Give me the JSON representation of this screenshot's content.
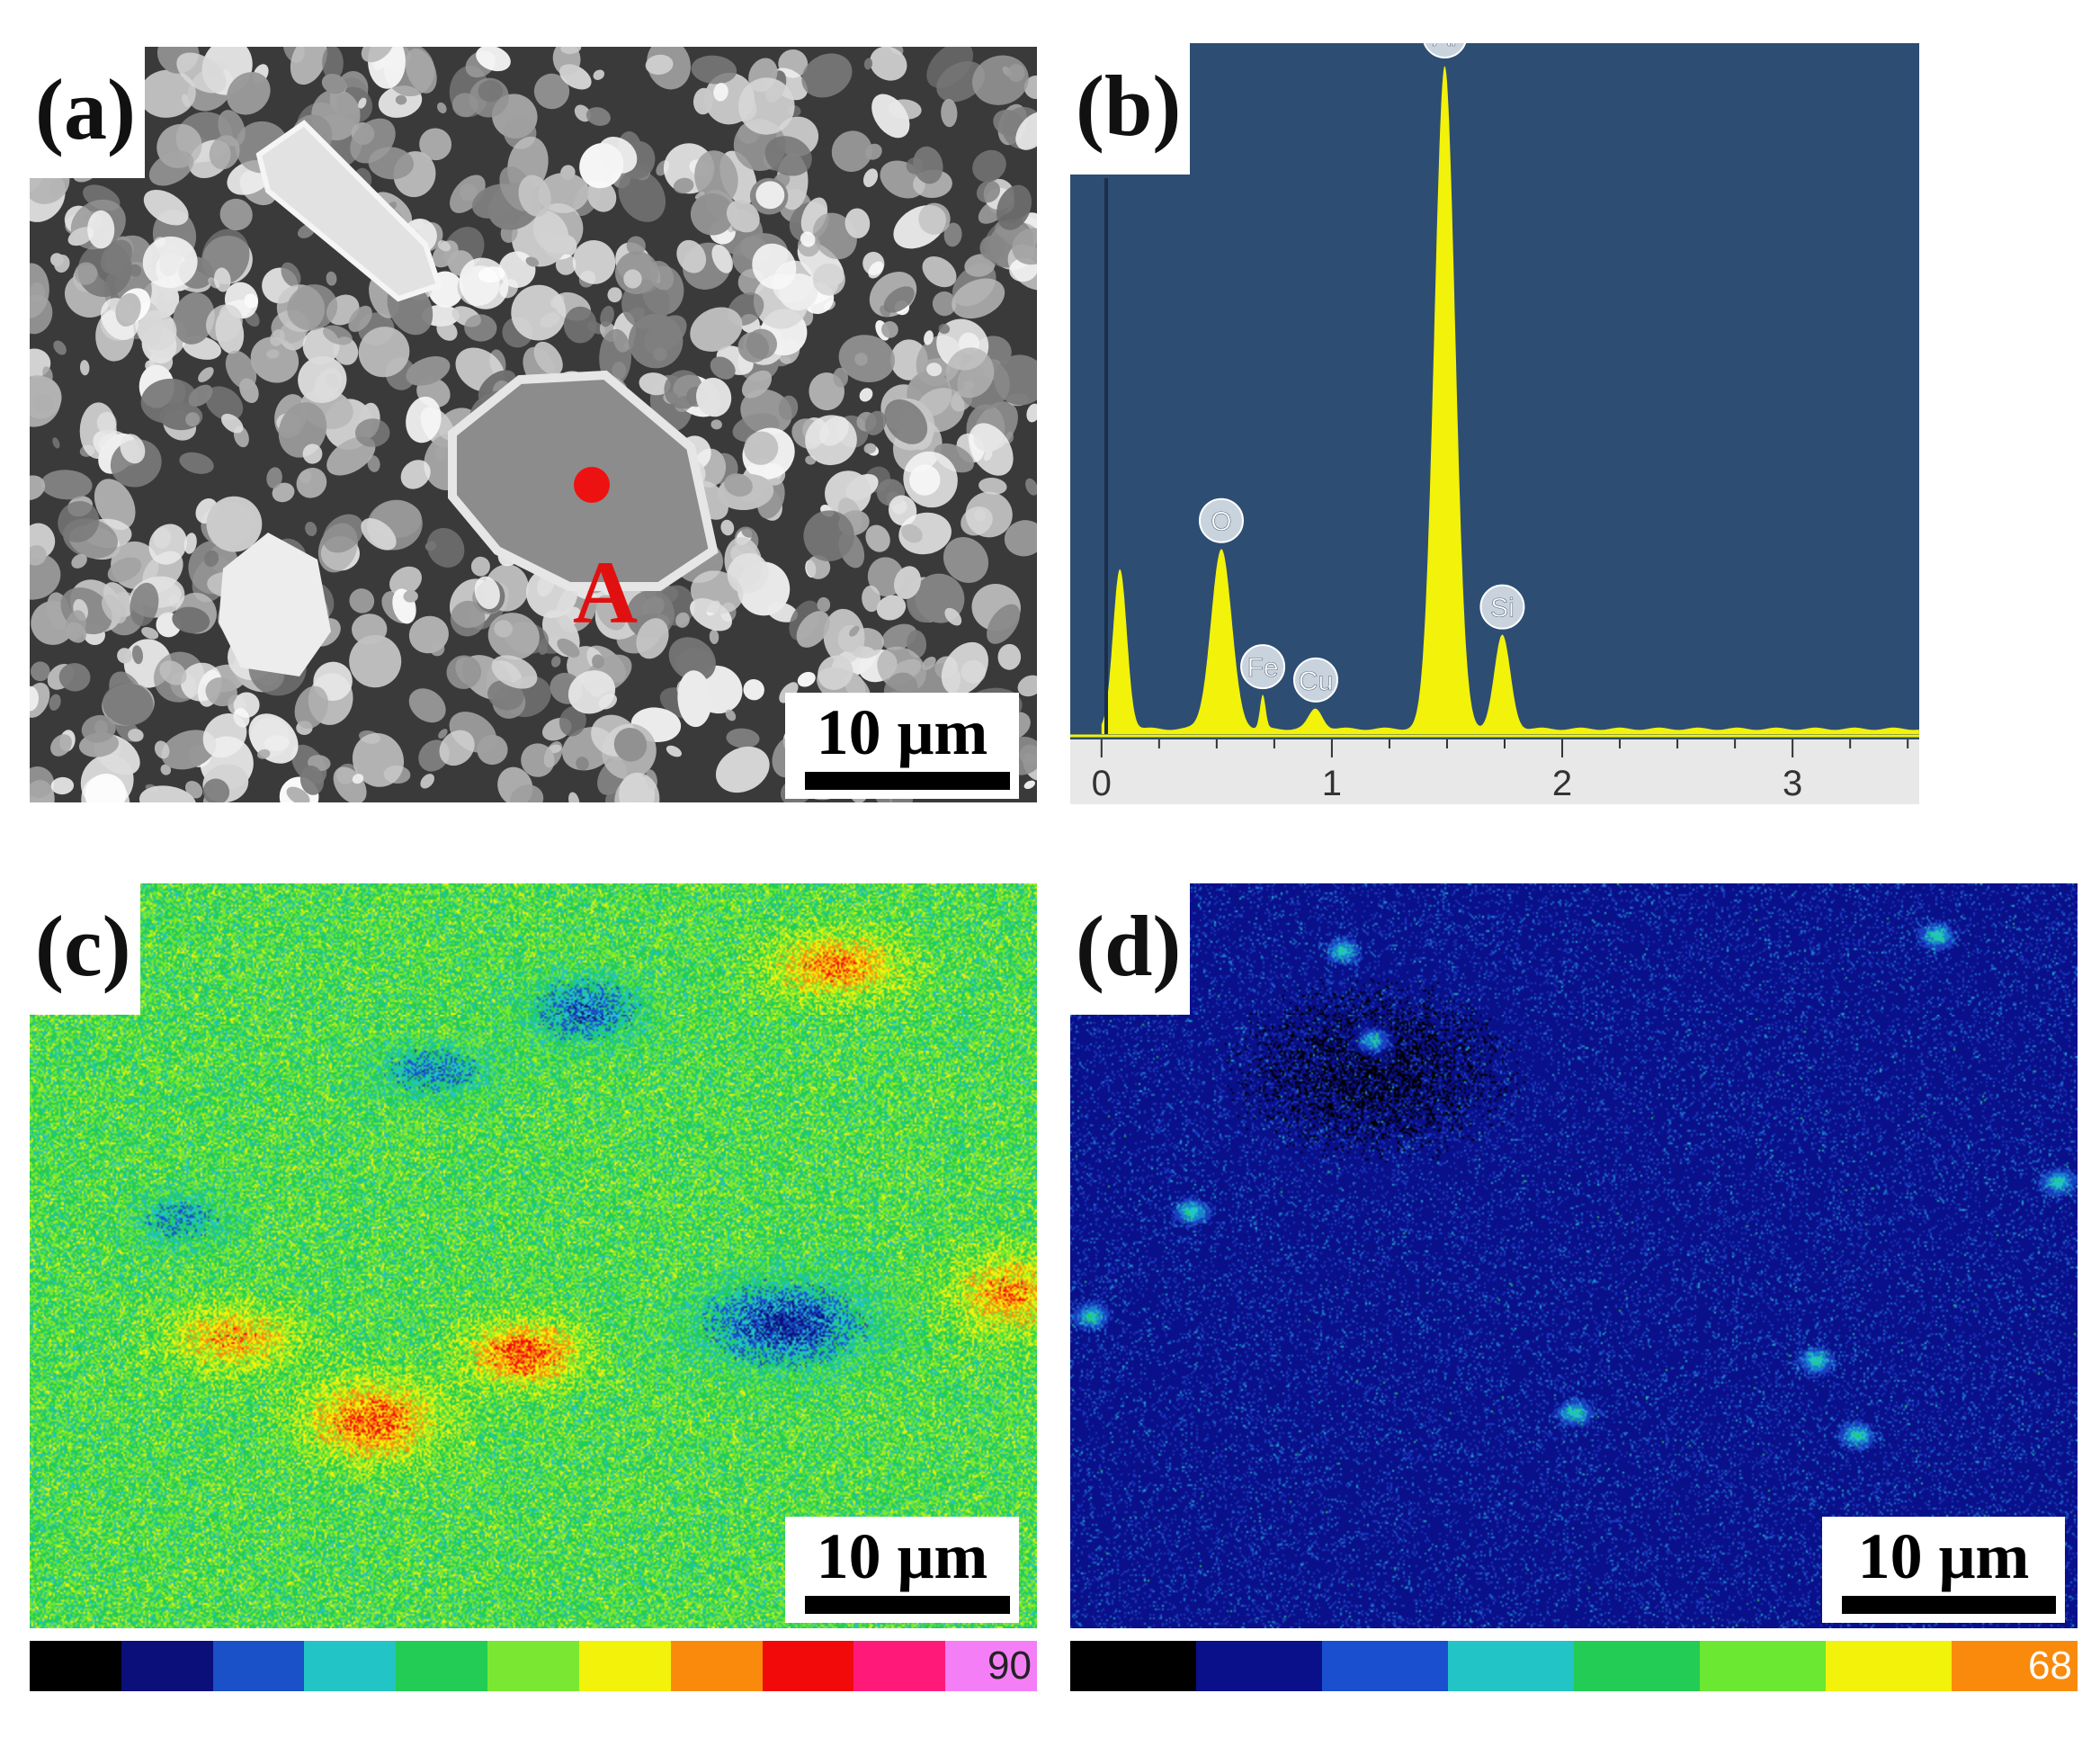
{
  "panels": {
    "a": {
      "label": "(a)",
      "point_label": "A",
      "scale_text": "10 μm"
    },
    "b": {
      "label": "(b)"
    },
    "c": {
      "label": "(c)",
      "scale_text": "10 μm",
      "colorbar": {
        "max_label": "90",
        "colors": [
          "#000000",
          "#0a0f7a",
          "#1a50c8",
          "#22c4c6",
          "#22cc55",
          "#7ae832",
          "#f2f20a",
          "#fa8a0c",
          "#f20a0a",
          "#ff1a7a",
          "#f47ef6"
        ]
      }
    },
    "d": {
      "label": "(d)",
      "scale_text": "10 μm",
      "colorbar": {
        "max_label": "68",
        "colors": [
          "#000000",
          "#0a0f8a",
          "#1a50d0",
          "#22c4c6",
          "#22cc55",
          "#6ae832",
          "#f2f20a",
          "#fa8a0c"
        ]
      }
    }
  },
  "chart_data": {
    "type": "line",
    "title": "",
    "xlabel": "",
    "ylabel": "",
    "xlim": [
      -0.05,
      3.55
    ],
    "ylim": [
      0,
      100
    ],
    "x_ticks": [
      "0",
      "1",
      "2",
      "3"
    ],
    "grid": false,
    "background": "#2d4d73",
    "line_color": "#f2f20a",
    "peaks": [
      {
        "element": "O",
        "x": 0.52,
        "height": 27
      },
      {
        "element": "Fe",
        "x": 0.7,
        "height": 5
      },
      {
        "element": "Cu",
        "x": 0.93,
        "height": 3
      },
      {
        "element": "Al",
        "x": 1.49,
        "height": 100
      },
      {
        "element": "Si",
        "x": 1.74,
        "height": 14
      }
    ],
    "unlabeled_peaks": [
      {
        "x": 0.08,
        "height": 24
      }
    ]
  }
}
